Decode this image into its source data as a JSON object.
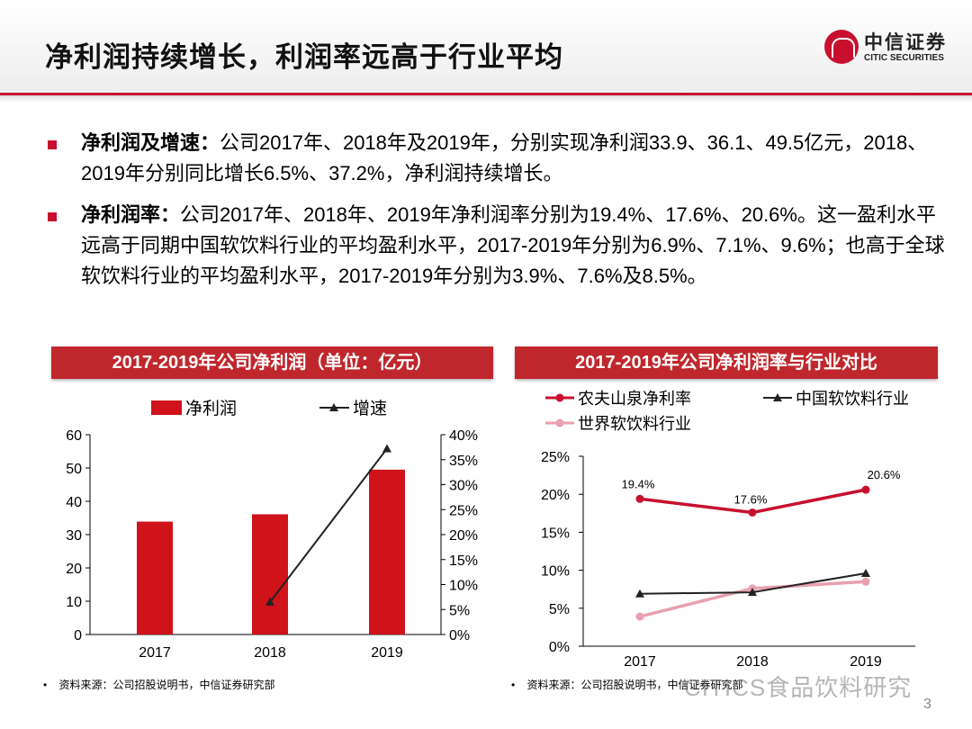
{
  "header": {
    "title": "净利润持续增长，利润率远高于行业平均",
    "logo_cn": "中信证券",
    "logo_en": "CITIC SECURITIES"
  },
  "bullets": [
    {
      "label": "净利润及增速：",
      "text": "公司2017年、2018年及2019年，分别实现净利润33.9、36.1、49.5亿元，2018、2019年分别同比增长6.5%、37.2%，净利润持续增长。"
    },
    {
      "label": "净利润率：",
      "text": "公司2017年、2018年、2019年净利润率分别为19.4%、17.6%、20.6%。这一盈利水平远高于同期中国软饮料行业的平均盈利水平，2017-2019年分别为6.9%、7.1%、9.6%；也高于全球软饮料行业的平均盈利水平，2017-2019年分别为3.9%、7.6%及8.5%。"
    }
  ],
  "chart_data": [
    {
      "type": "bar+line",
      "title": "2017-2019年公司净利润（单位：亿元）",
      "categories": [
        "2017",
        "2018",
        "2019"
      ],
      "series": [
        {
          "name": "净利润",
          "type": "bar",
          "axis": "left",
          "values": [
            33.9,
            36.1,
            49.5
          ],
          "color": "#d0121b"
        },
        {
          "name": "增速",
          "type": "line",
          "axis": "right",
          "values": [
            null,
            6.5,
            37.2
          ],
          "color": "#222222"
        }
      ],
      "ylim": [
        0,
        60
      ],
      "yticks": [
        "0",
        "10",
        "20",
        "30",
        "40",
        "50",
        "60"
      ],
      "y2lim": [
        0,
        40
      ],
      "y2ticks": [
        "0%",
        "5%",
        "10%",
        "15%",
        "20%",
        "25%",
        "30%",
        "35%",
        "40%"
      ],
      "legend": "top"
    },
    {
      "type": "line",
      "title": "2017-2019年公司净利润率与行业对比",
      "categories": [
        "2017",
        "2018",
        "2019"
      ],
      "series": [
        {
          "name": "农夫山泉净利率",
          "values": [
            19.4,
            17.6,
            20.6
          ],
          "color": "#c8102e",
          "labels": [
            "19.4%",
            "17.6%",
            "20.6%"
          ]
        },
        {
          "name": "中国软饮料行业",
          "values": [
            6.9,
            7.1,
            9.6
          ],
          "color": "#222222"
        },
        {
          "name": "世界软饮料行业",
          "values": [
            3.9,
            7.6,
            8.5
          ],
          "color": "#e8a0b0"
        }
      ],
      "ylim": [
        0,
        25
      ],
      "yticks": [
        "0%",
        "5%",
        "10%",
        "15%",
        "20%",
        "25%"
      ],
      "legend": "top"
    }
  ],
  "sources": [
    "资料来源：公司招股说明书，中信证券研究部",
    "资料来源：公司招股说明书，中信证券研究部"
  ],
  "watermark": "CITICS食品饮料研究",
  "page_number": "3"
}
